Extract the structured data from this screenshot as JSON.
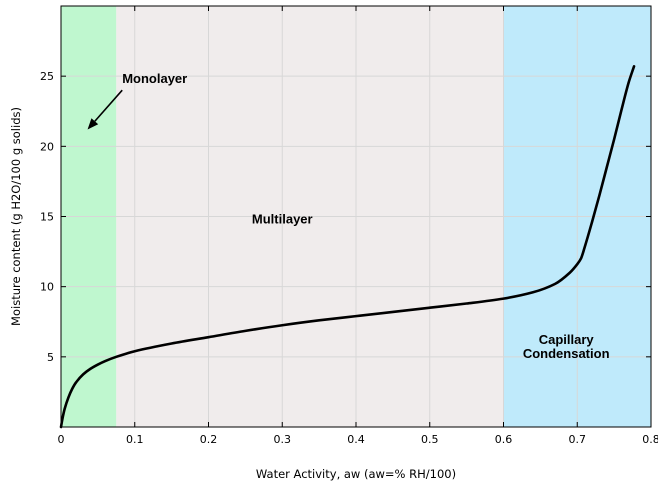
{
  "chart_data": {
    "type": "line",
    "title": "",
    "xlabel": "Water Activity, aw (aw=% RH/100)",
    "ylabel": "Moisture content (g H2O/100 g solids)",
    "xlim": [
      0,
      0.8
    ],
    "ylim": [
      0,
      30
    ],
    "x_ticks": [
      0,
      0.1,
      0.2,
      0.3,
      0.4,
      0.5,
      0.6,
      0.7,
      0.8
    ],
    "x_tick_labels": [
      "0",
      "0.1",
      "0.2",
      "0.3",
      "0.4",
      "0.5",
      "0.6",
      "0.7",
      "0.8"
    ],
    "y_ticks": [
      5,
      10,
      15,
      20,
      25
    ],
    "y_tick_labels": [
      "5",
      "10",
      "15",
      "20",
      "25"
    ],
    "grid": true,
    "regions": [
      {
        "name": "Monolayer",
        "x_start": 0,
        "x_end": 0.075,
        "color": "#bff7cf"
      },
      {
        "name": "Multilayer",
        "x_start": 0.075,
        "x_end": 0.6,
        "color": "#f0ecec"
      },
      {
        "name": "Capillary Condensation",
        "x_start": 0.6,
        "x_end": 0.8,
        "color": "#bfeafb"
      }
    ],
    "annotations": [
      {
        "text": "Monolayer",
        "x": 0.083,
        "y": 24.5
      },
      {
        "text": "Multilayer",
        "x": 0.3,
        "y": 14.5
      },
      {
        "text": "Capillary",
        "x": 0.685,
        "y": 5.9
      },
      {
        "text": "Condensation",
        "x": 0.685,
        "y": 4.9
      }
    ],
    "arrow": {
      "from": [
        0.083,
        24.0
      ],
      "to": [
        0.036,
        21.2
      ]
    },
    "series": [
      {
        "color": "#000000",
        "x": [
          0,
          0.002,
          0.005,
          0.01,
          0.015,
          0.02,
          0.03,
          0.04,
          0.05,
          0.06,
          0.075,
          0.1,
          0.15,
          0.2,
          0.25,
          0.3,
          0.35,
          0.4,
          0.45,
          0.5,
          0.55,
          0.6,
          0.64,
          0.67,
          0.69,
          0.7,
          0.705,
          0.71,
          0.72,
          0.73,
          0.74,
          0.75,
          0.76,
          0.77,
          0.777
        ],
        "y": [
          0,
          0.6,
          1.3,
          2.1,
          2.7,
          3.15,
          3.75,
          4.15,
          4.45,
          4.7,
          5.0,
          5.4,
          5.95,
          6.4,
          6.85,
          7.25,
          7.6,
          7.9,
          8.2,
          8.5,
          8.8,
          9.15,
          9.6,
          10.2,
          11.0,
          11.6,
          12.0,
          12.8,
          14.6,
          16.5,
          18.5,
          20.5,
          22.6,
          24.6,
          25.7
        ]
      }
    ]
  }
}
